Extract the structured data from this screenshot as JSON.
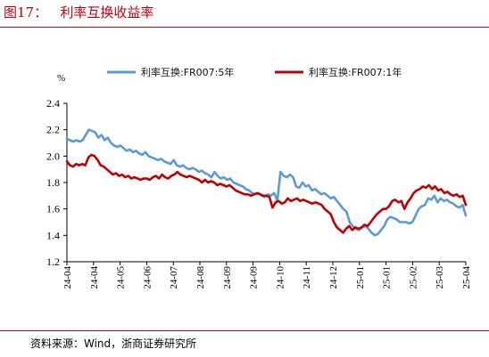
{
  "header": {
    "title": "图17：   利率互换收益率"
  },
  "footer": {
    "source": "资料来源：Wind，浙商证券研究所"
  },
  "colors": {
    "accent": "#c0000e",
    "series_5y": "#5b9bd5",
    "series_1y": "#c00000"
  },
  "chart_data": {
    "type": "line",
    "title": "",
    "ylabel": "%",
    "xlabel": "",
    "ylim": [
      1.2,
      2.4
    ],
    "yticks": [
      1.2,
      1.4,
      1.6,
      1.8,
      2.0,
      2.2,
      2.4
    ],
    "ytick_labels": [
      "1.2",
      "1.4",
      "1.6",
      "1.8",
      "2.0",
      "2.2",
      "2.4"
    ],
    "xtick_labels": [
      "24-04",
      "24-04",
      "24-05",
      "24-06",
      "24-07",
      "24-08",
      "24-09",
      "24-09",
      "24-10",
      "24-11",
      "24-12",
      "25-01",
      "25-01",
      "25-02",
      "25-03",
      "25-04"
    ],
    "legend_position": "top",
    "grid": false,
    "series": [
      {
        "name": "利率互换:FR007:5年",
        "color": "#5b9bd5",
        "values": [
          2.13,
          2.12,
          2.11,
          2.12,
          2.11,
          2.12,
          2.16,
          2.2,
          2.19,
          2.18,
          2.14,
          2.16,
          2.12,
          2.14,
          2.1,
          2.08,
          2.07,
          2.08,
          2.06,
          2.04,
          2.05,
          2.03,
          2.04,
          2.02,
          2.01,
          2.03,
          2.0,
          1.99,
          1.98,
          1.97,
          1.98,
          1.96,
          1.95,
          1.94,
          1.97,
          1.93,
          1.92,
          1.93,
          1.91,
          1.9,
          1.91,
          1.9,
          1.88,
          1.89,
          1.87,
          1.86,
          1.84,
          1.88,
          1.85,
          1.83,
          1.84,
          1.82,
          1.83,
          1.8,
          1.79,
          1.78,
          1.77,
          1.75,
          1.74,
          1.72,
          1.71,
          1.72,
          1.7,
          1.69,
          1.71,
          1.7,
          1.72,
          1.66,
          1.88,
          1.85,
          1.84,
          1.86,
          1.84,
          1.77,
          1.76,
          1.8,
          1.77,
          1.78,
          1.74,
          1.75,
          1.73,
          1.71,
          1.72,
          1.7,
          1.68,
          1.69,
          1.66,
          1.63,
          1.6,
          1.58,
          1.5,
          1.47,
          1.45,
          1.44,
          1.46,
          1.47,
          1.45,
          1.42,
          1.4,
          1.41,
          1.44,
          1.47,
          1.52,
          1.54,
          1.53,
          1.52,
          1.5,
          1.5,
          1.5,
          1.49,
          1.5,
          1.55,
          1.6,
          1.62,
          1.63,
          1.68,
          1.67,
          1.7,
          1.65,
          1.68,
          1.66,
          1.67,
          1.65,
          1.64,
          1.62,
          1.61,
          1.63,
          1.55
        ]
      },
      {
        "name": "利率互换:FR007:1年",
        "color": "#c00000",
        "values": [
          1.96,
          1.93,
          1.92,
          1.94,
          1.93,
          1.94,
          1.93,
          1.99,
          2.01,
          2.0,
          1.97,
          1.93,
          1.92,
          1.9,
          1.88,
          1.86,
          1.87,
          1.85,
          1.86,
          1.84,
          1.85,
          1.83,
          1.84,
          1.83,
          1.82,
          1.83,
          1.83,
          1.82,
          1.84,
          1.85,
          1.83,
          1.86,
          1.84,
          1.83,
          1.85,
          1.86,
          1.88,
          1.86,
          1.85,
          1.84,
          1.85,
          1.84,
          1.83,
          1.82,
          1.8,
          1.82,
          1.8,
          1.81,
          1.8,
          1.78,
          1.79,
          1.78,
          1.77,
          1.78,
          1.76,
          1.74,
          1.73,
          1.72,
          1.71,
          1.71,
          1.7,
          1.71,
          1.72,
          1.71,
          1.7,
          1.7,
          1.69,
          1.61,
          1.65,
          1.66,
          1.64,
          1.65,
          1.68,
          1.66,
          1.67,
          1.68,
          1.66,
          1.67,
          1.66,
          1.65,
          1.64,
          1.65,
          1.64,
          1.63,
          1.6,
          1.58,
          1.56,
          1.5,
          1.46,
          1.44,
          1.42,
          1.45,
          1.47,
          1.44,
          1.46,
          1.45,
          1.46,
          1.48,
          1.47,
          1.5,
          1.53,
          1.56,
          1.58,
          1.6,
          1.6,
          1.62,
          1.66,
          1.67,
          1.65,
          1.66,
          1.6,
          1.65,
          1.68,
          1.72,
          1.74,
          1.75,
          1.77,
          1.76,
          1.78,
          1.75,
          1.77,
          1.74,
          1.75,
          1.72,
          1.73,
          1.71,
          1.7,
          1.71,
          1.69,
          1.7,
          1.63
        ]
      }
    ]
  }
}
